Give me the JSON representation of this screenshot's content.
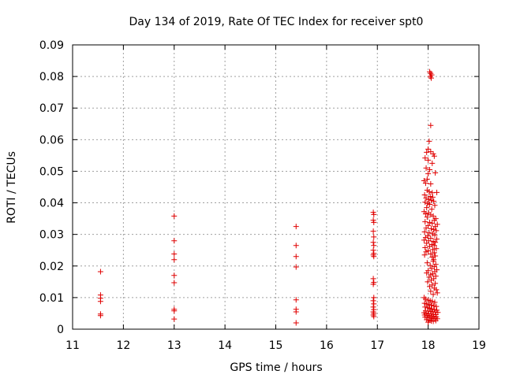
{
  "chart_data": {
    "type": "scatter",
    "title": "Day 134 of 2019, Rate Of TEC Index for receiver spt0",
    "xlabel": "GPS time / hours",
    "ylabel": "ROTI / TECUs",
    "xlim": [
      11,
      19
    ],
    "ylim": [
      0,
      0.09
    ],
    "xticks": [
      11,
      12,
      13,
      14,
      15,
      16,
      17,
      18,
      19
    ],
    "yticks": [
      "0",
      "0.01",
      "0.02",
      "0.03",
      "0.04",
      "0.05",
      "0.06",
      "0.07",
      "0.08",
      "0.09"
    ],
    "grid": true,
    "marker": "plus",
    "color": "#e00000",
    "series": [
      {
        "name": "ROTI",
        "points": [
          [
            11.55,
            0.0182
          ],
          [
            11.55,
            0.0108
          ],
          [
            11.55,
            0.0098
          ],
          [
            11.55,
            0.0088
          ],
          [
            11.55,
            0.0048
          ],
          [
            11.55,
            0.0043
          ],
          [
            13.0,
            0.0358
          ],
          [
            13.0,
            0.028
          ],
          [
            13.0,
            0.0238
          ],
          [
            13.0,
            0.022
          ],
          [
            13.0,
            0.017
          ],
          [
            13.0,
            0.0147
          ],
          [
            13.0,
            0.0063
          ],
          [
            13.0,
            0.0058
          ],
          [
            13.0,
            0.0032
          ],
          [
            15.4,
            0.0325
          ],
          [
            15.4,
            0.0265
          ],
          [
            15.4,
            0.023
          ],
          [
            15.4,
            0.0197
          ],
          [
            15.4,
            0.0093
          ],
          [
            15.4,
            0.0063
          ],
          [
            15.4,
            0.0055
          ],
          [
            15.4,
            0.002
          ],
          [
            16.92,
            0.037
          ],
          [
            16.93,
            0.0363
          ],
          [
            16.92,
            0.0345
          ],
          [
            16.93,
            0.0338
          ],
          [
            16.92,
            0.031
          ],
          [
            16.93,
            0.0292
          ],
          [
            16.92,
            0.0275
          ],
          [
            16.93,
            0.0265
          ],
          [
            16.92,
            0.025
          ],
          [
            16.93,
            0.024
          ],
          [
            16.92,
            0.0235
          ],
          [
            16.93,
            0.023
          ],
          [
            16.92,
            0.016
          ],
          [
            16.93,
            0.0148
          ],
          [
            16.92,
            0.0142
          ],
          [
            16.93,
            0.01
          ],
          [
            16.92,
            0.009
          ],
          [
            16.93,
            0.008
          ],
          [
            16.92,
            0.007
          ],
          [
            16.93,
            0.0062
          ],
          [
            16.92,
            0.0055
          ],
          [
            16.93,
            0.005
          ],
          [
            16.92,
            0.0045
          ],
          [
            16.93,
            0.004
          ],
          [
            18.03,
            0.0815
          ],
          [
            18.05,
            0.081
          ],
          [
            18.07,
            0.0805
          ],
          [
            18.04,
            0.08
          ],
          [
            18.06,
            0.0795
          ],
          [
            18.05,
            0.0645
          ],
          [
            18.02,
            0.0595
          ],
          [
            18.0,
            0.057
          ],
          [
            17.97,
            0.056
          ],
          [
            18.05,
            0.0562
          ],
          [
            18.1,
            0.0555
          ],
          [
            18.12,
            0.0548
          ],
          [
            17.94,
            0.0542
          ],
          [
            18.0,
            0.0535
          ],
          [
            18.08,
            0.0525
          ],
          [
            17.96,
            0.051
          ],
          [
            18.03,
            0.0505
          ],
          [
            18.14,
            0.0495
          ],
          [
            18.0,
            0.0492
          ],
          [
            17.98,
            0.0475
          ],
          [
            17.92,
            0.047
          ],
          [
            17.95,
            0.0462
          ],
          [
            18.05,
            0.046
          ],
          [
            17.98,
            0.044
          ],
          [
            18.02,
            0.0435
          ],
          [
            18.08,
            0.0432
          ],
          [
            18.17,
            0.0433
          ],
          [
            17.93,
            0.0425
          ],
          [
            18.04,
            0.042
          ],
          [
            18.09,
            0.0418
          ],
          [
            17.96,
            0.0415
          ],
          [
            18.01,
            0.041
          ],
          [
            18.06,
            0.0408
          ],
          [
            18.11,
            0.0405
          ],
          [
            17.94,
            0.0402
          ],
          [
            17.99,
            0.0398
          ],
          [
            18.03,
            0.0395
          ],
          [
            18.13,
            0.0392
          ],
          [
            17.97,
            0.0385
          ],
          [
            18.07,
            0.038
          ],
          [
            17.92,
            0.0372
          ],
          [
            18.01,
            0.0368
          ],
          [
            17.95,
            0.0365
          ],
          [
            18.05,
            0.0362
          ],
          [
            18.1,
            0.0358
          ],
          [
            17.98,
            0.0355
          ],
          [
            18.15,
            0.035
          ],
          [
            18.12,
            0.0345
          ],
          [
            17.94,
            0.034
          ],
          [
            18.03,
            0.0338
          ],
          [
            18.08,
            0.0335
          ],
          [
            18.18,
            0.0332
          ],
          [
            18.0,
            0.0328
          ],
          [
            18.14,
            0.0325
          ],
          [
            17.96,
            0.032
          ],
          [
            18.06,
            0.0318
          ],
          [
            18.11,
            0.0315
          ],
          [
            18.16,
            0.0312
          ],
          [
            17.93,
            0.0308
          ],
          [
            18.02,
            0.0305
          ],
          [
            18.09,
            0.0302
          ],
          [
            18.13,
            0.0298
          ],
          [
            17.99,
            0.0295
          ],
          [
            17.95,
            0.029
          ],
          [
            18.05,
            0.0288
          ],
          [
            18.17,
            0.0285
          ],
          [
            17.92,
            0.0282
          ],
          [
            18.01,
            0.028
          ],
          [
            18.1,
            0.0278
          ],
          [
            18.14,
            0.0275
          ],
          [
            17.97,
            0.0272
          ],
          [
            18.07,
            0.0268
          ],
          [
            18.12,
            0.0265
          ],
          [
            18.03,
            0.0262
          ],
          [
            17.94,
            0.0258
          ],
          [
            18.16,
            0.0255
          ],
          [
            18.09,
            0.0252
          ],
          [
            18.0,
            0.0248
          ],
          [
            17.96,
            0.0245
          ],
          [
            18.12,
            0.0242
          ],
          [
            18.05,
            0.0238
          ],
          [
            17.93,
            0.0235
          ],
          [
            18.14,
            0.0232
          ],
          [
            18.08,
            0.0228
          ],
          [
            18.11,
            0.022
          ],
          [
            18.1,
            0.0215
          ],
          [
            17.98,
            0.021
          ],
          [
            18.15,
            0.0205
          ],
          [
            18.04,
            0.0202
          ],
          [
            18.12,
            0.0198
          ],
          [
            18.07,
            0.0192
          ],
          [
            18.17,
            0.0188
          ],
          [
            18.0,
            0.0185
          ],
          [
            18.13,
            0.0182
          ],
          [
            17.97,
            0.0178
          ],
          [
            18.09,
            0.0175
          ],
          [
            18.05,
            0.0172
          ],
          [
            18.15,
            0.0168
          ],
          [
            18.02,
            0.0165
          ],
          [
            18.11,
            0.016
          ],
          [
            18.06,
            0.0155
          ],
          [
            17.99,
            0.015
          ],
          [
            18.14,
            0.0145
          ],
          [
            18.08,
            0.014
          ],
          [
            18.03,
            0.0135
          ],
          [
            18.12,
            0.013
          ],
          [
            18.16,
            0.0125
          ],
          [
            18.05,
            0.012
          ],
          [
            18.18,
            0.0115
          ],
          [
            18.1,
            0.011
          ],
          [
            17.92,
            0.01
          ],
          [
            17.95,
            0.0095
          ],
          [
            18.0,
            0.0092
          ],
          [
            18.04,
            0.009
          ],
          [
            18.08,
            0.0088
          ],
          [
            18.13,
            0.0085
          ],
          [
            17.93,
            0.0082
          ],
          [
            17.97,
            0.008
          ],
          [
            18.02,
            0.0078
          ],
          [
            18.06,
            0.0076
          ],
          [
            18.11,
            0.0074
          ],
          [
            18.16,
            0.0072
          ],
          [
            17.94,
            0.007
          ],
          [
            17.99,
            0.0068
          ],
          [
            18.03,
            0.0066
          ],
          [
            18.07,
            0.0064
          ],
          [
            18.12,
            0.0062
          ],
          [
            18.17,
            0.006
          ],
          [
            17.95,
            0.0058
          ],
          [
            18.0,
            0.0057
          ],
          [
            18.05,
            0.0056
          ],
          [
            18.09,
            0.0055
          ],
          [
            18.14,
            0.0054
          ],
          [
            18.19,
            0.0053
          ],
          [
            17.92,
            0.0052
          ],
          [
            17.96,
            0.005
          ],
          [
            18.01,
            0.0049
          ],
          [
            18.06,
            0.0048
          ],
          [
            18.1,
            0.0047
          ],
          [
            18.15,
            0.0046
          ],
          [
            17.93,
            0.0045
          ],
          [
            17.98,
            0.0044
          ],
          [
            18.02,
            0.0042
          ],
          [
            18.07,
            0.0041
          ],
          [
            18.11,
            0.004
          ],
          [
            18.16,
            0.0039
          ],
          [
            17.94,
            0.0038
          ],
          [
            17.99,
            0.0037
          ],
          [
            18.04,
            0.0036
          ],
          [
            18.08,
            0.0035
          ],
          [
            18.13,
            0.0034
          ],
          [
            18.18,
            0.0033
          ],
          [
            17.97,
            0.003
          ],
          [
            18.02,
            0.0028
          ],
          [
            18.06,
            0.0026
          ],
          [
            18.1,
            0.0025
          ],
          [
            18.15,
            0.0027
          ],
          [
            18.0,
            0.0022
          ]
        ]
      }
    ]
  }
}
